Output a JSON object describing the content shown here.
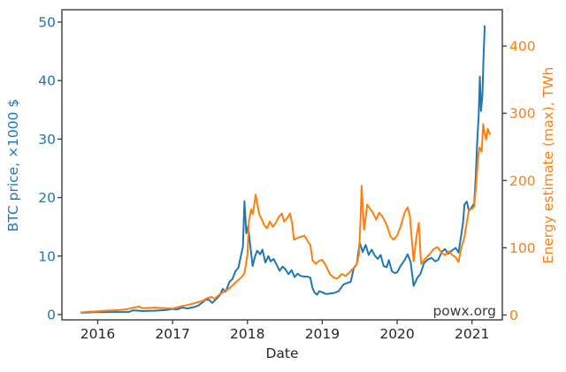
{
  "chart_data": {
    "type": "line",
    "title": "",
    "xlabel": "Date",
    "ylabel_left": "BTC price, ×1000 $",
    "ylabel_right": "Energy estimate (max), TWh",
    "watermark": "powx.org",
    "grid": false,
    "legend": "none",
    "x_ticks": [
      2016,
      2017,
      2018,
      2019,
      2020,
      2021
    ],
    "left_axis": {
      "ticks": [
        0,
        10,
        20,
        30,
        40,
        50
      ],
      "range": [
        0,
        50
      ],
      "color": "#1f77b4"
    },
    "right_axis": {
      "ticks": [
        0,
        100,
        200,
        300,
        400
      ],
      "range": [
        0,
        430
      ],
      "color": "#ff7f0e"
    },
    "x_range_years": [
      2015.52,
      2021.41
    ],
    "series": [
      {
        "name": "BTC price, ×1000 $",
        "axis": "left",
        "color": "#1f77b4",
        "x": [
          2015.78,
          2015.88,
          2015.96,
          2016.04,
          2016.12,
          2016.22,
          2016.32,
          2016.42,
          2016.47,
          2016.53,
          2016.6,
          2016.68,
          2016.76,
          2016.84,
          2016.92,
          2017.0,
          2017.06,
          2017.13,
          2017.2,
          2017.27,
          2017.34,
          2017.4,
          2017.44,
          2017.49,
          2017.53,
          2017.58,
          2017.63,
          2017.67,
          2017.71,
          2017.76,
          2017.8,
          2017.84,
          2017.88,
          2017.91,
          2017.94,
          2017.96,
          2017.985,
          2018.01,
          2018.04,
          2018.07,
          2018.1,
          2018.13,
          2018.17,
          2018.2,
          2018.24,
          2018.28,
          2018.31,
          2018.35,
          2018.39,
          2018.43,
          2018.47,
          2018.51,
          2018.55,
          2018.59,
          2018.63,
          2018.67,
          2018.71,
          2018.76,
          2018.8,
          2018.84,
          2018.87,
          2018.9,
          2018.93,
          2018.96,
          2019.0,
          2019.05,
          2019.1,
          2019.16,
          2019.22,
          2019.28,
          2019.33,
          2019.38,
          2019.42,
          2019.46,
          2019.5,
          2019.54,
          2019.58,
          2019.62,
          2019.66,
          2019.7,
          2019.74,
          2019.78,
          2019.82,
          2019.86,
          2019.89,
          2019.93,
          2019.97,
          2020.0,
          2020.05,
          2020.1,
          2020.14,
          2020.18,
          2020.22,
          2020.27,
          2020.31,
          2020.36,
          2020.41,
          2020.46,
          2020.51,
          2020.55,
          2020.6,
          2020.64,
          2020.68,
          2020.73,
          2020.78,
          2020.82,
          2020.85,
          2020.88,
          2020.9,
          2020.93,
          2020.96,
          2021.0,
          2021.03,
          2021.05,
          2021.07,
          2021.09,
          2021.105,
          2021.12,
          2021.14,
          2021.155,
          2021.17
        ],
        "y": [
          0.31,
          0.36,
          0.43,
          0.41,
          0.42,
          0.44,
          0.44,
          0.46,
          0.72,
          0.68,
          0.61,
          0.64,
          0.66,
          0.72,
          0.78,
          0.97,
          0.88,
          1.19,
          1.05,
          1.22,
          1.5,
          2.1,
          2.55,
          2.5,
          2.0,
          2.6,
          3.3,
          4.4,
          3.9,
          5.6,
          6.1,
          7.4,
          8.0,
          9.9,
          11.6,
          19.4,
          13.9,
          15.1,
          11.5,
          8.3,
          9.9,
          10.9,
          10.3,
          11.1,
          8.9,
          10.0,
          9.1,
          9.5,
          8.5,
          7.5,
          8.2,
          7.7,
          6.9,
          7.6,
          6.4,
          7.0,
          6.6,
          6.5,
          6.5,
          6.3,
          4.5,
          3.7,
          3.4,
          4.0,
          3.8,
          3.5,
          3.6,
          3.7,
          4.0,
          5.1,
          5.4,
          5.6,
          7.9,
          8.6,
          12.3,
          10.7,
          11.9,
          10.2,
          11.1,
          10.1,
          9.5,
          10.2,
          8.3,
          8.1,
          9.3,
          7.4,
          7.1,
          7.2,
          8.4,
          9.3,
          10.3,
          9.0,
          4.9,
          6.3,
          6.9,
          8.8,
          9.4,
          9.7,
          9.1,
          9.4,
          10.8,
          11.2,
          10.4,
          10.9,
          11.4,
          10.6,
          13.1,
          15.6,
          18.8,
          19.3,
          17.7,
          18.4,
          19.0,
          23.4,
          29.5,
          34.2,
          40.7,
          34.8,
          37.6,
          44.2,
          49.3
        ]
      },
      {
        "name": "Energy estimate (max), TWh",
        "axis": "right",
        "color": "#ff7f0e",
        "x": [
          2015.78,
          2015.9,
          2016.0,
          2016.1,
          2016.2,
          2016.3,
          2016.4,
          2016.48,
          2016.55,
          2016.6,
          2016.68,
          2016.76,
          2016.84,
          2016.92,
          2017.0,
          2017.08,
          2017.16,
          2017.24,
          2017.32,
          2017.4,
          2017.46,
          2017.52,
          2017.56,
          2017.62,
          2017.68,
          2017.74,
          2017.8,
          2017.86,
          2017.92,
          2017.96,
          2018.0,
          2018.02,
          2018.05,
          2018.07,
          2018.09,
          2018.11,
          2018.13,
          2018.16,
          2018.19,
          2018.22,
          2018.26,
          2018.3,
          2018.34,
          2018.38,
          2018.42,
          2018.46,
          2018.49,
          2018.53,
          2018.57,
          2018.6,
          2018.62,
          2018.66,
          2018.71,
          2018.76,
          2018.8,
          2018.84,
          2018.87,
          2018.91,
          2018.95,
          2019.0,
          2019.05,
          2019.1,
          2019.15,
          2019.2,
          2019.26,
          2019.31,
          2019.37,
          2019.42,
          2019.46,
          2019.49,
          2019.51,
          2019.525,
          2019.545,
          2019.56,
          2019.6,
          2019.64,
          2019.68,
          2019.72,
          2019.76,
          2019.8,
          2019.84,
          2019.88,
          2019.91,
          2019.95,
          2020.0,
          2020.05,
          2020.1,
          2020.14,
          2020.17,
          2020.22,
          2020.26,
          2020.29,
          2020.32,
          2020.37,
          2020.43,
          2020.49,
          2020.54,
          2020.59,
          2020.64,
          2020.69,
          2020.74,
          2020.78,
          2020.82,
          2020.86,
          2020.9,
          2020.93,
          2020.96,
          2021.0,
          2021.03,
          2021.055,
          2021.08,
          2021.1,
          2021.13,
          2021.15,
          2021.17,
          2021.19,
          2021.21,
          2021.24
        ],
        "y": [
          4,
          5,
          5.5,
          6.5,
          7,
          7.5,
          9,
          11,
          12.5,
          10,
          10.5,
          11,
          10.5,
          10,
          9.5,
          12,
          14,
          16,
          18.5,
          21,
          25,
          27,
          24,
          30,
          34,
          38,
          44,
          50,
          56,
          62,
          90,
          140,
          157,
          150,
          163,
          179,
          166,
          149,
          143,
          134,
          129,
          139,
          131,
          137,
          146,
          151,
          139,
          144,
          151,
          134,
          112,
          114,
          116,
          118,
          111,
          104,
          82,
          76,
          80,
          82,
          73,
          61,
          56,
          54,
          61,
          58,
          64,
          70,
          76,
          90,
          140,
          192,
          152,
          127,
          164,
          158,
          151,
          142,
          152,
          147,
          139,
          128,
          117,
          112,
          118,
          133,
          152,
          160,
          148,
          80,
          118,
          137,
          76,
          83,
          90,
          98,
          101,
          93,
          89,
          95,
          89,
          86,
          79,
          101,
          116,
          138,
          156,
          158,
          161,
          194,
          232,
          249,
          243,
          284,
          270,
          261,
          277,
          269
        ]
      }
    ]
  },
  "layout_colors": {
    "spine": "#3c3c3c",
    "tick_mark": "#3c3c3c",
    "background": "#ffffff"
  }
}
